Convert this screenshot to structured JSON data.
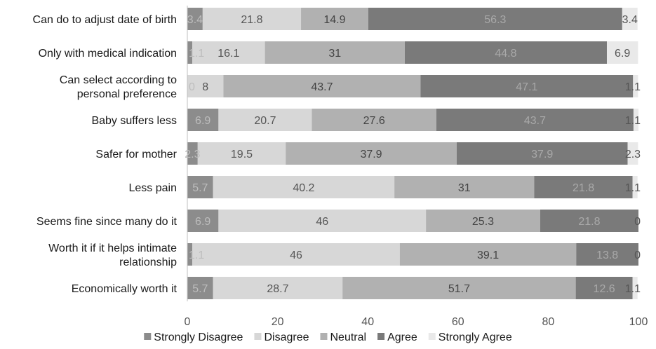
{
  "chart_data": {
    "type": "bar",
    "orientation": "horizontal",
    "stacked": true,
    "title": "",
    "xlabel": "",
    "ylabel": "",
    "xlim": [
      0,
      100
    ],
    "x_ticks": [
      0,
      20,
      40,
      60,
      80,
      100
    ],
    "x_tick_labels": [
      "0",
      "20",
      "40",
      "60",
      "80",
      "100"
    ],
    "grid": false,
    "legend_position": "bottom",
    "categories": [
      "Can do to adjust date of birth",
      "Only with medical indication",
      "Can select according to personal preference",
      "Baby suffers less",
      "Safer for mother",
      "Less pain",
      "Seems fine since many do it",
      "Worth it if it helps intimate relationship",
      "Economically worth it"
    ],
    "series": [
      {
        "name": "Strongly Disagree",
        "color": "#8c8c8c",
        "label_color": "#bdbdbd",
        "values": [
          3.4,
          1.1,
          0,
          6.9,
          2.3,
          5.7,
          6.9,
          1.1,
          5.7
        ],
        "labels": [
          "3.4",
          "1.1",
          "0",
          "6.9",
          "2.3",
          "5.7",
          "6.9",
          "1.1",
          "5.7"
        ]
      },
      {
        "name": "Disagree",
        "color": "#d7d7d7",
        "label_color": "#555555",
        "values": [
          21.8,
          16.1,
          8,
          20.7,
          19.5,
          40.2,
          46,
          46,
          28.7
        ],
        "labels": [
          "21.8",
          "16.1",
          "8",
          "20.7",
          "19.5",
          "40.2",
          "46",
          "46",
          "28.7"
        ]
      },
      {
        "name": "Neutral",
        "color": "#b1b1b1",
        "label_color": "#444444",
        "values": [
          14.9,
          31,
          43.7,
          27.6,
          37.9,
          31,
          25.3,
          39.1,
          51.7
        ],
        "labels": [
          "14.9",
          "31",
          "43.7",
          "27.6",
          "37.9",
          "31",
          "25.3",
          "39.1",
          "51.7"
        ]
      },
      {
        "name": "Agree",
        "color": "#7a7a7a",
        "label_color": "#a9a9a9",
        "values": [
          56.3,
          44.8,
          47.1,
          43.7,
          37.9,
          21.8,
          21.8,
          13.8,
          12.6
        ],
        "labels": [
          "56.3",
          "44.8",
          "47.1",
          "43.7",
          "37.9",
          "21.8",
          "21.8",
          "13.8",
          "12.6"
        ]
      },
      {
        "name": "Strongly Agree",
        "color": "#e9e9e9",
        "label_color": "#555555",
        "values": [
          3.4,
          6.9,
          1.1,
          1.1,
          2.3,
          1.1,
          0,
          0,
          1.1
        ],
        "labels": [
          "3.4",
          "6.9",
          "1.1",
          "1.1",
          "2.3",
          "1.1",
          "0",
          "0",
          "1.1"
        ]
      }
    ]
  }
}
